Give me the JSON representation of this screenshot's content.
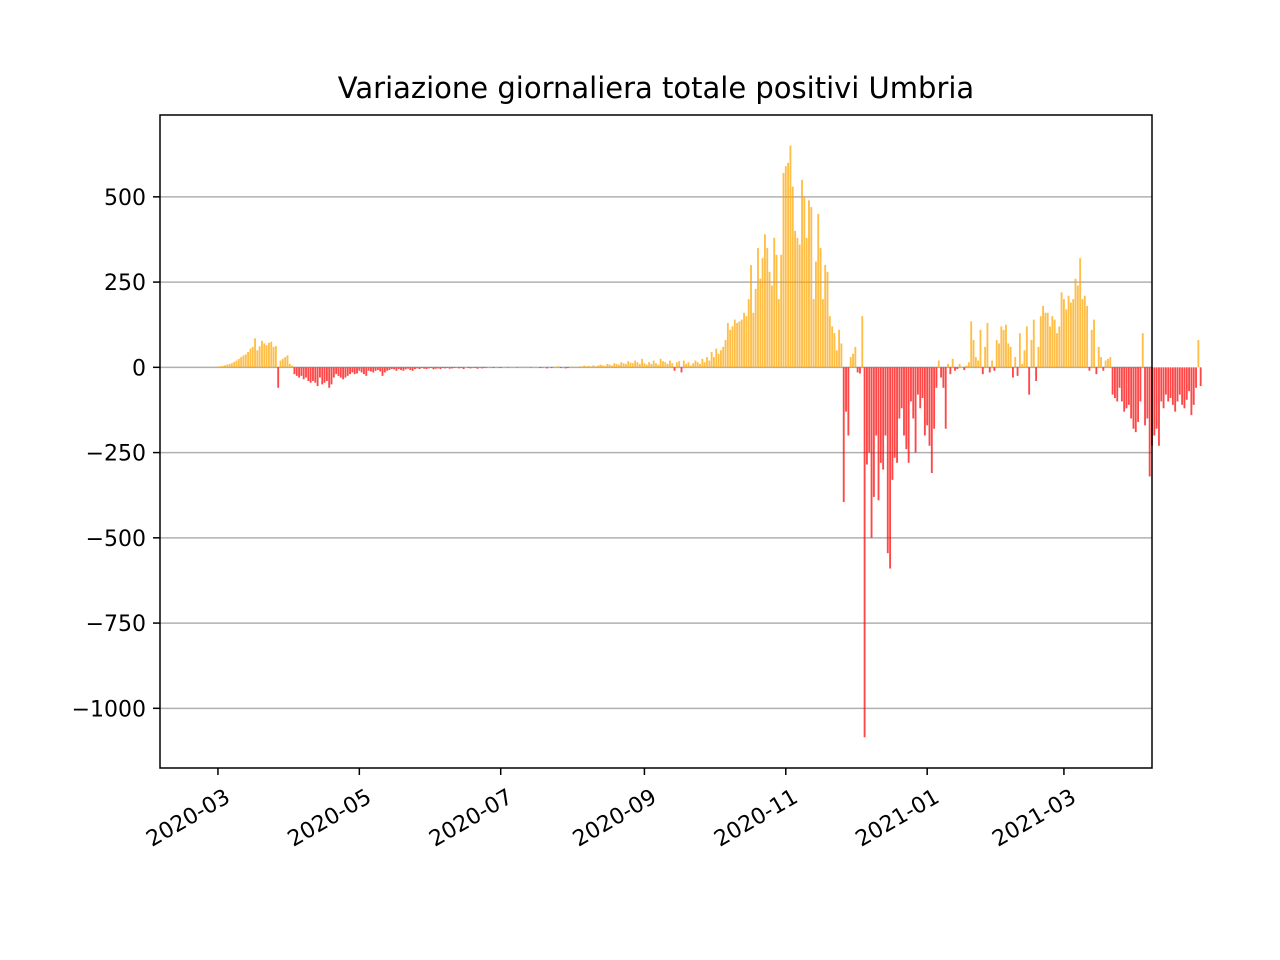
{
  "chart_data": {
    "type": "bar",
    "title": "Variazione giornaliera totale positivi Umbria",
    "xlabel": "",
    "ylabel": "",
    "ylim": [
      -1175,
      740
    ],
    "xlim": [
      "2020-02-05",
      "2021-04-08"
    ],
    "grid": "y",
    "legend": "none",
    "colors": {
      "positive": "#ffa500",
      "negative": "#ff0000",
      "grid": "#b0b0b0"
    },
    "y_ticks": [
      {
        "value": 500,
        "label": "500"
      },
      {
        "value": 250,
        "label": "250"
      },
      {
        "value": 0,
        "label": "0"
      },
      {
        "value": -250,
        "label": "−250"
      },
      {
        "value": -500,
        "label": "−500"
      },
      {
        "value": -750,
        "label": "−750"
      },
      {
        "value": -1000,
        "label": "−1000"
      }
    ],
    "x_ticks": [
      {
        "date": "2020-03-01",
        "label": "2020-03"
      },
      {
        "date": "2020-05-01",
        "label": "2020-05"
      },
      {
        "date": "2020-07-01",
        "label": "2020-07"
      },
      {
        "date": "2020-09-01",
        "label": "2020-09"
      },
      {
        "date": "2020-11-01",
        "label": "2020-11"
      },
      {
        "date": "2021-01-01",
        "label": "2021-01"
      },
      {
        "date": "2021-03-01",
        "label": "2021-03"
      }
    ],
    "start_date": "2020-02-24",
    "values": [
      0,
      0,
      0,
      0,
      2,
      0,
      2,
      3,
      4,
      6,
      8,
      10,
      12,
      16,
      20,
      25,
      30,
      35,
      38,
      45,
      55,
      60,
      85,
      50,
      62,
      78,
      70,
      65,
      72,
      75,
      60,
      62,
      -60,
      20,
      25,
      30,
      35,
      10,
      5,
      -20,
      -25,
      -30,
      -25,
      -35,
      -30,
      -40,
      -45,
      -40,
      -45,
      -55,
      -30,
      -50,
      -45,
      -40,
      -60,
      -50,
      -30,
      -20,
      -25,
      -30,
      -35,
      -30,
      -25,
      -20,
      -15,
      -20,
      -18,
      -10,
      -15,
      -20,
      -25,
      -10,
      -12,
      -15,
      -10,
      -8,
      -12,
      -25,
      -15,
      -10,
      -8,
      -5,
      -6,
      -10,
      -5,
      -8,
      -10,
      -6,
      -4,
      -8,
      -10,
      -5,
      -3,
      -5,
      -2,
      -4,
      -5,
      -3,
      -2,
      -6,
      -4,
      -3,
      -5,
      -2,
      -3,
      -2,
      -4,
      -3,
      -2,
      -1,
      -3,
      -2,
      -5,
      0,
      -2,
      -3,
      -1,
      -2,
      -4,
      -1,
      -3,
      -2,
      -1,
      0,
      -1,
      -2,
      0,
      -1,
      -2,
      0,
      0,
      -1,
      0,
      1,
      0,
      -1,
      0,
      0,
      1,
      0,
      0,
      -1,
      0,
      1,
      0,
      -2,
      -1,
      0,
      -3,
      0,
      -2,
      1,
      2,
      3,
      -2,
      0,
      -3,
      -2,
      0,
      2,
      1,
      0,
      3,
      2,
      5,
      3,
      4,
      2,
      6,
      3,
      5,
      8,
      6,
      4,
      10,
      8,
      5,
      12,
      10,
      8,
      15,
      12,
      10,
      18,
      14,
      12,
      20,
      15,
      10,
      25,
      12,
      8,
      15,
      10,
      20,
      12,
      8,
      25,
      18,
      15,
      10,
      20,
      12,
      -10,
      15,
      18,
      -15,
      20,
      10,
      15,
      5,
      12,
      20,
      15,
      10,
      25,
      15,
      30,
      20,
      45,
      30,
      55,
      40,
      50,
      60,
      80,
      130,
      110,
      120,
      140,
      130,
      135,
      140,
      160,
      150,
      200,
      300,
      160,
      230,
      350,
      260,
      320,
      390,
      350,
      280,
      240,
      380,
      330,
      200,
      330,
      570,
      590,
      600,
      650,
      530,
      400,
      380,
      360,
      550,
      500,
      380,
      490,
      470,
      200,
      310,
      450,
      350,
      200,
      300,
      280,
      150,
      120,
      100,
      50,
      110,
      70,
      -395,
      -130,
      -200,
      30,
      40,
      60,
      -15,
      -18,
      150,
      -1085,
      -285,
      -250,
      -500,
      -380,
      -200,
      -390,
      -280,
      -300,
      -200,
      -545,
      -590,
      -330,
      -265,
      -280,
      -150,
      -120,
      -200,
      -240,
      -280,
      -100,
      -150,
      -250,
      -80,
      -120,
      -90,
      -200,
      -170,
      -230,
      -310,
      -180,
      -60,
      20,
      -30,
      -60,
      -180,
      10,
      -20,
      25,
      -10,
      -5,
      10,
      0,
      -8,
      5,
      15,
      135,
      80,
      30,
      20,
      110,
      -20,
      60,
      130,
      -15,
      20,
      -10,
      80,
      70,
      120,
      110,
      125,
      70,
      60,
      -30,
      30,
      -25,
      100,
      10,
      50,
      120,
      -80,
      80,
      140,
      -40,
      60,
      150,
      180,
      160,
      160,
      120,
      150,
      140,
      100,
      120,
      220,
      200,
      170,
      210,
      190,
      200,
      260,
      240,
      320,
      200,
      210,
      180,
      -10,
      110,
      140,
      -20,
      60,
      30,
      -10,
      20,
      25,
      30,
      -80,
      -90,
      -100,
      -60,
      -100,
      -130,
      -120,
      -110,
      -150,
      -180,
      -190,
      -160,
      -100,
      100,
      -170,
      -150,
      -320,
      -230,
      -200,
      -180,
      -230,
      -100,
      -120,
      -80,
      -100,
      -90,
      -110,
      -130,
      -100,
      -80,
      -110,
      -120,
      -95,
      -70,
      -140,
      -110,
      -60,
      80,
      -55
    ]
  }
}
